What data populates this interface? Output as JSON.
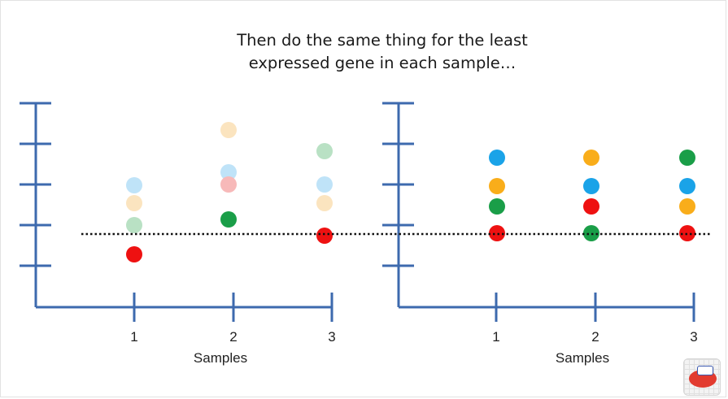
{
  "title": {
    "line1": "Then do the same thing for the least",
    "line2": "expressed gene in each sample…"
  },
  "left_panel": {
    "x_ticks": [
      "1",
      "2",
      "3"
    ],
    "x_label": "Samples"
  },
  "right_panel": {
    "x_ticks": [
      "1",
      "2",
      "3"
    ],
    "x_label": "Samples"
  },
  "colors": {
    "axis": "#3d6aae",
    "blue": "#1aa3e8",
    "orange": "#f9ad1a",
    "green": "#1a9e48",
    "red": "#ee1111",
    "blue_faded": "#bfe3f8",
    "orange_faded": "#fbe4bf",
    "green_faded": "#b9e1c4",
    "red_faded": "#f7b9b9",
    "dotted_line": "#111111"
  },
  "logo": {
    "icon": "statquest-logo-icon"
  }
}
